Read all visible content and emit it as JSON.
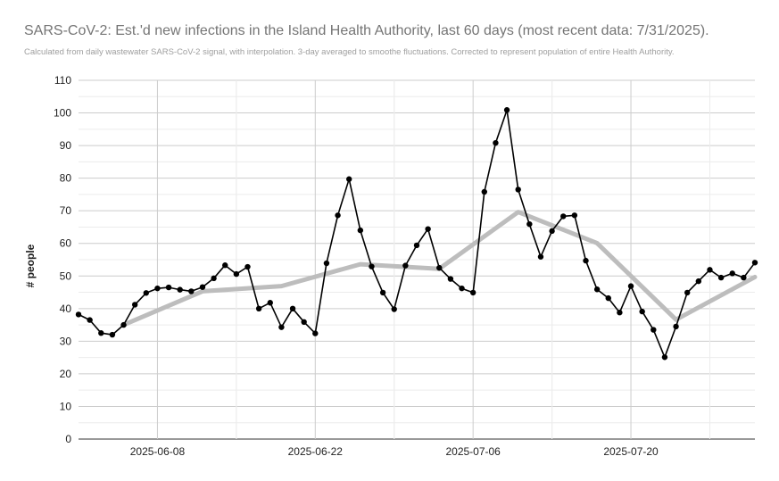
{
  "chart_data": {
    "type": "line",
    "title": "SARS-CoV-2: Est.'d new infections in the Island Health Authority, last 60 days (most recent data: 7/31/2025).",
    "subtitle": "Calculated from daily wastewater SARS-CoV-2 signal, with interpolation. 3-day averaged to smoothe fluctuations. Corrected to represent population of entire Health Authority.",
    "xlabel": "",
    "ylabel": "# people",
    "ylim": [
      0,
      110
    ],
    "yticks": [
      0,
      10,
      20,
      30,
      40,
      50,
      60,
      70,
      80,
      90,
      100,
      110
    ],
    "xlim": [
      "2025-06-01",
      "2025-07-31"
    ],
    "xticks": [
      "2025-06-08",
      "2025-06-22",
      "2025-07-06",
      "2025-07-20"
    ],
    "grid": true,
    "series": [
      {
        "color": "#000000",
        "marker": "circle",
        "points": [
          [
            "2025-06-01",
            38.2
          ],
          [
            "2025-06-02",
            36.5
          ],
          [
            "2025-06-03",
            32.5
          ],
          [
            "2025-06-04",
            32.0
          ],
          [
            "2025-06-05",
            35.0
          ],
          [
            "2025-06-06",
            41.2
          ],
          [
            "2025-06-07",
            44.8
          ],
          [
            "2025-06-08",
            46.2
          ],
          [
            "2025-06-09",
            46.5
          ],
          [
            "2025-06-10",
            45.8
          ],
          [
            "2025-06-11",
            45.3
          ],
          [
            "2025-06-12",
            46.6
          ],
          [
            "2025-06-13",
            49.3
          ],
          [
            "2025-06-14",
            53.3
          ],
          [
            "2025-06-15",
            50.6
          ],
          [
            "2025-06-16",
            52.8
          ],
          [
            "2025-06-17",
            40.0
          ],
          [
            "2025-06-18",
            41.8
          ],
          [
            "2025-06-19",
            34.3
          ],
          [
            "2025-06-20",
            40.0
          ],
          [
            "2025-06-21",
            35.9
          ],
          [
            "2025-06-22",
            32.4
          ],
          [
            "2025-06-23",
            53.9
          ],
          [
            "2025-06-24",
            68.6
          ],
          [
            "2025-06-25",
            79.7
          ],
          [
            "2025-06-26",
            64.0
          ],
          [
            "2025-06-27",
            52.9
          ],
          [
            "2025-06-28",
            44.9
          ],
          [
            "2025-06-29",
            39.8
          ],
          [
            "2025-06-30",
            53.2
          ],
          [
            "2025-07-01",
            59.4
          ],
          [
            "2025-07-02",
            64.4
          ],
          [
            "2025-07-03",
            52.5
          ],
          [
            "2025-07-04",
            49.1
          ],
          [
            "2025-07-05",
            46.2
          ],
          [
            "2025-07-06",
            44.9
          ],
          [
            "2025-07-07",
            75.8
          ],
          [
            "2025-07-08",
            90.8
          ],
          [
            "2025-07-09",
            100.9
          ],
          [
            "2025-07-10",
            76.5
          ],
          [
            "2025-07-11",
            65.9
          ],
          [
            "2025-07-12",
            55.9
          ],
          [
            "2025-07-13",
            63.8
          ],
          [
            "2025-07-14",
            68.3
          ],
          [
            "2025-07-15",
            68.6
          ],
          [
            "2025-07-16",
            54.7
          ],
          [
            "2025-07-17",
            45.9
          ],
          [
            "2025-07-18",
            43.2
          ],
          [
            "2025-07-19",
            38.8
          ],
          [
            "2025-07-20",
            46.9
          ],
          [
            "2025-07-21",
            39.1
          ],
          [
            "2025-07-22",
            33.5
          ],
          [
            "2025-07-23",
            25.1
          ],
          [
            "2025-07-24",
            34.5
          ],
          [
            "2025-07-25",
            44.9
          ],
          [
            "2025-07-26",
            48.4
          ],
          [
            "2025-07-27",
            51.9
          ],
          [
            "2025-07-28",
            49.5
          ],
          [
            "2025-07-29",
            50.8
          ],
          [
            "2025-07-30",
            49.5
          ],
          [
            "2025-07-31",
            54.1
          ]
        ]
      },
      {
        "color": "#bdbdbd",
        "marker": "none",
        "points": [
          [
            "2025-06-05",
            35.0
          ],
          [
            "2025-06-12",
            45.3
          ],
          [
            "2025-06-19",
            46.9
          ],
          [
            "2025-06-26",
            53.6
          ],
          [
            "2025-07-03",
            52.2
          ],
          [
            "2025-07-10",
            69.6
          ],
          [
            "2025-07-17",
            60.1
          ],
          [
            "2025-07-24",
            36.6
          ],
          [
            "2025-07-31",
            49.7
          ]
        ]
      }
    ]
  }
}
